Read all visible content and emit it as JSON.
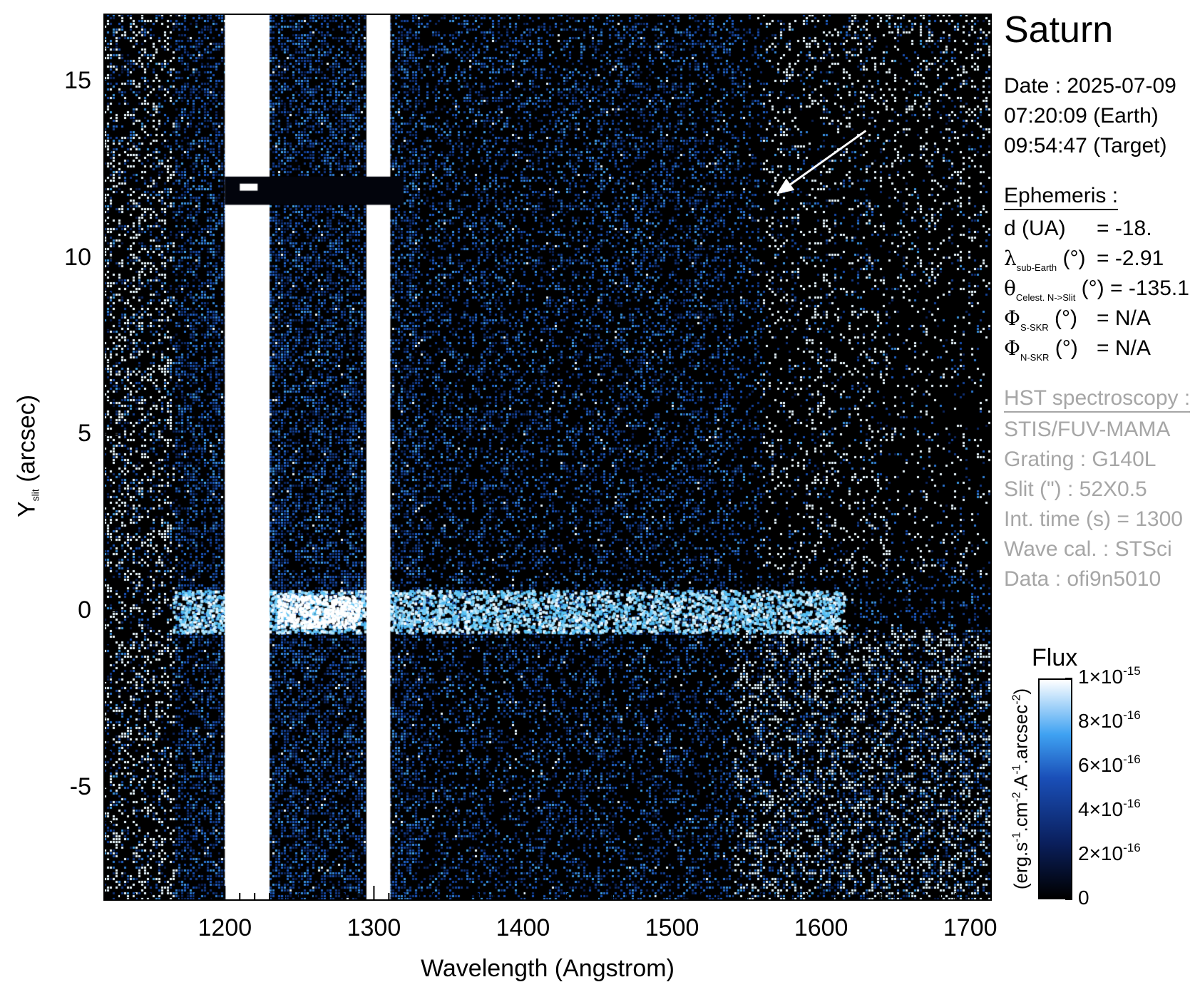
{
  "panel": {
    "target": "Saturn",
    "date_line": "Date : 2025-07-09",
    "time_earth": "07:20:09 (Earth)",
    "time_target": "09:54:47 (Target)"
  },
  "ephemeris": {
    "heading": "Ephemeris :",
    "d_label": "d (UA)",
    "d_value": "= -18.",
    "lambda_symbol": "λ",
    "lambda_sub": "sub-Earth",
    "lambda_unit": "(°)",
    "lambda_value": "= -2.91",
    "theta_symbol": "θ",
    "theta_sub": "Celest. N->Slit",
    "theta_unit": "(°)",
    "theta_value": "= -135.1",
    "phi_symbol": "Φ",
    "phi_s_sub": "S-SKR",
    "phi_s_unit": "(°)",
    "phi_s_value": "= N/A",
    "phi_n_sub": "N-SKR",
    "phi_n_unit": "(°)",
    "phi_n_value": "= N/A"
  },
  "instrument": {
    "heading": "HST spectroscopy :",
    "detector": "STIS/FUV-MAMA",
    "grating": "Grating : G140L",
    "slit": "Slit (\") : 52X0.5",
    "int_time": "Int. time (s) = 1300",
    "wave_cal": "Wave cal. : STSci",
    "data_id": "Data : ofi9n5010"
  },
  "colors": {
    "background": "#000000",
    "flux_low": "#000000",
    "flux_mid": "#1a4fb8",
    "flux_high": "#ffffff",
    "instrument_text": "#a6a6a6"
  },
  "chart_data": {
    "type": "heatmap",
    "title": "",
    "xlabel": "Wavelength (Angstrom)",
    "ylabel_main": "Y",
    "ylabel_sub": "slit",
    "ylabel_unit": "(arcsec)",
    "xlim": [
      1119,
      1714
    ],
    "ylim": [
      -8.2,
      16.9
    ],
    "xticks": [
      1200,
      1300,
      1400,
      1500,
      1600,
      1700
    ],
    "xtick_labels": [
      "1200",
      "1300",
      "1400",
      "1500",
      "1600",
      "1700"
    ],
    "yticks": [
      15,
      10,
      5,
      0,
      -5
    ],
    "ytick_labels": [
      "15",
      "10",
      "5",
      "0",
      "-5"
    ],
    "colorbar": {
      "title": "Flux",
      "range": [
        0,
        1e-15
      ],
      "ticks": [
        0,
        2e-16,
        4e-16,
        6e-16,
        8e-16,
        1e-15
      ],
      "tick_mantissa": [
        "",
        "2×10",
        "4×10",
        "6×10",
        "8×10",
        "1×10"
      ],
      "tick_exponent": [
        "",
        "-16",
        "-16",
        "-16",
        "-16",
        "-15"
      ],
      "tick_zero": "0",
      "unit": "(erg.s-1.cm-2.A-1.arcsec-2)"
    },
    "features": {
      "saturated_lines_angstrom": [
        1216,
        1304
      ],
      "lya_range": [
        1200,
        1230
      ],
      "oi_range": [
        1295,
        1311
      ],
      "continuum_y_arcsec": 0,
      "gap_y_arcsec": 12,
      "arrow_from": [
        1630,
        13.6
      ],
      "arrow_to": [
        1570,
        11.8
      ]
    }
  }
}
